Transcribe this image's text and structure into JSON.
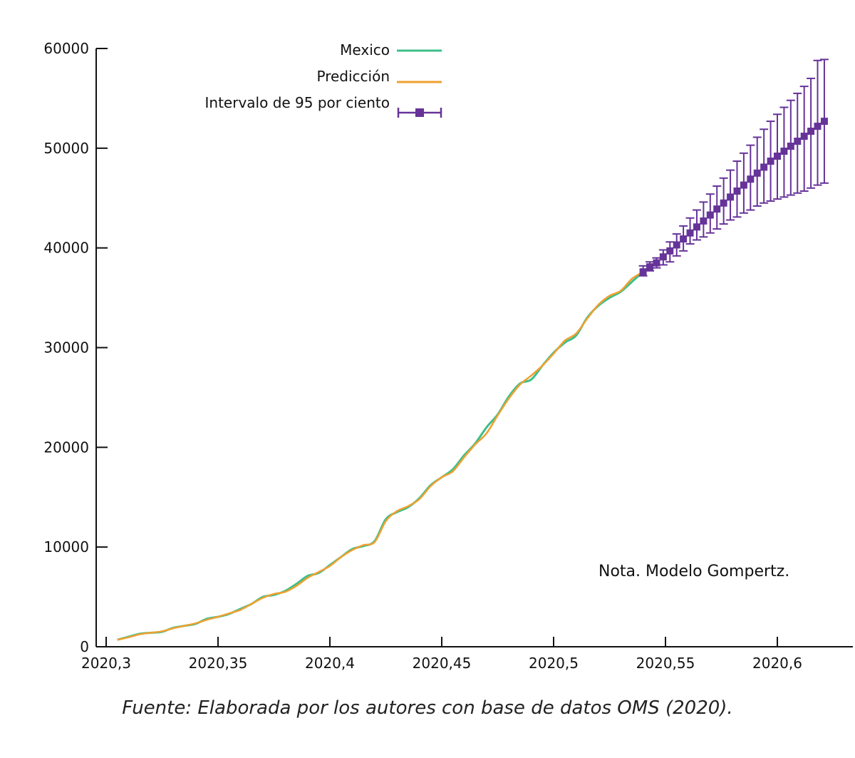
{
  "chart_data": {
    "type": "line",
    "title": "",
    "xlabel": "",
    "ylabel": "",
    "xlim": [
      2020.296,
      2020.64
    ],
    "ylim": [
      0,
      60000
    ],
    "x_ticks": [
      2020.3,
      2020.35,
      2020.4,
      2020.45,
      2020.5,
      2020.55,
      2020.6
    ],
    "x_tick_labels": [
      "2020,3",
      "2020,35",
      "2020,4",
      "2020,45",
      "2020,5",
      "2020,55",
      "2020,6"
    ],
    "y_ticks": [
      0,
      10000,
      20000,
      30000,
      40000,
      50000,
      60000
    ],
    "y_tick_labels": [
      "0",
      "10000",
      "20000",
      "30000",
      "40000",
      "50000",
      "60000"
    ],
    "legend_position": "top-left",
    "grid": false,
    "series": [
      {
        "name": "Mexico",
        "color": "#3dbf8a",
        "x": [
          2020.305,
          2020.31,
          2020.315,
          2020.32,
          2020.325,
          2020.33,
          2020.335,
          2020.34,
          2020.345,
          2020.35,
          2020.355,
          2020.36,
          2020.365,
          2020.37,
          2020.375,
          2020.38,
          2020.385,
          2020.39,
          2020.395,
          2020.4,
          2020.405,
          2020.41,
          2020.415,
          2020.42,
          2020.425,
          2020.43,
          2020.435,
          2020.44,
          2020.445,
          2020.45,
          2020.455,
          2020.46,
          2020.465,
          2020.47,
          2020.475,
          2020.48,
          2020.485,
          2020.49,
          2020.495,
          2020.5,
          2020.505,
          2020.51,
          2020.515,
          2020.52,
          2020.525,
          2020.53,
          2020.535,
          2020.54
        ],
        "values": [
          700,
          1000,
          1300,
          1400,
          1500,
          1900,
          2100,
          2300,
          2800,
          3000,
          3300,
          3800,
          4300,
          5000,
          5200,
          5600,
          6300,
          7100,
          7400,
          8200,
          9000,
          9800,
          10100,
          10600,
          12800,
          13500,
          14000,
          14900,
          16200,
          17000,
          17800,
          19200,
          20400,
          22000,
          23300,
          25100,
          26400,
          26800,
          28200,
          29500,
          30500,
          31200,
          33000,
          34200,
          35000,
          35600,
          36600,
          37600
        ]
      },
      {
        "name": "Predicción",
        "color": "#f0a030",
        "x": [
          2020.305,
          2020.31,
          2020.315,
          2020.32,
          2020.325,
          2020.33,
          2020.335,
          2020.34,
          2020.345,
          2020.35,
          2020.355,
          2020.36,
          2020.365,
          2020.37,
          2020.375,
          2020.38,
          2020.385,
          2020.39,
          2020.395,
          2020.4,
          2020.405,
          2020.41,
          2020.415,
          2020.42,
          2020.425,
          2020.43,
          2020.435,
          2020.44,
          2020.445,
          2020.45,
          2020.455,
          2020.46,
          2020.465,
          2020.47,
          2020.475,
          2020.48,
          2020.485,
          2020.49,
          2020.495,
          2020.5,
          2020.505,
          2020.51,
          2020.515,
          2020.52,
          2020.525,
          2020.53,
          2020.535,
          2020.54
        ],
        "values": [
          700,
          950,
          1250,
          1400,
          1550,
          1850,
          2100,
          2350,
          2700,
          3000,
          3350,
          3700,
          4300,
          4900,
          5300,
          5500,
          6100,
          6900,
          7500,
          8100,
          9000,
          9700,
          10200,
          10500,
          12600,
          13600,
          14100,
          14800,
          16100,
          17000,
          17600,
          19000,
          20300,
          21400,
          23200,
          24900,
          26300,
          27200,
          28200,
          29400,
          30700,
          31400,
          32900,
          34300,
          35200,
          35700,
          36900,
          37600
        ]
      },
      {
        "name": "Intervalo de 95 por ciento",
        "color": "#663399",
        "x": [
          2020.54,
          2020.543,
          2020.546,
          2020.549,
          2020.552,
          2020.555,
          2020.558,
          2020.561,
          2020.564,
          2020.567,
          2020.57,
          2020.573,
          2020.576,
          2020.579,
          2020.582,
          2020.585,
          2020.588,
          2020.591,
          2020.594,
          2020.597,
          2020.6,
          2020.603,
          2020.606,
          2020.609,
          2020.612,
          2020.615,
          2020.618,
          2020.621
        ],
        "values": [
          37600,
          38100,
          38500,
          39100,
          39700,
          40300,
          40900,
          41500,
          42100,
          42700,
          43300,
          43900,
          44500,
          45100,
          45700,
          46300,
          46900,
          47500,
          48100,
          48700,
          49200,
          49700,
          50200,
          50700,
          51200,
          51700,
          52200,
          52700
        ],
        "lower": [
          37200,
          37700,
          38000,
          38300,
          38600,
          39200,
          39700,
          40400,
          40800,
          41100,
          41500,
          41900,
          42400,
          42800,
          43100,
          43500,
          43800,
          44200,
          44500,
          44700,
          44900,
          45100,
          45300,
          45500,
          45700,
          46000,
          46300,
          46500
        ],
        "upper": [
          38200,
          38600,
          39000,
          39800,
          40600,
          41400,
          42200,
          43000,
          43800,
          44600,
          45400,
          46200,
          47000,
          47800,
          48700,
          49500,
          50300,
          51100,
          51900,
          52700,
          53400,
          54100,
          54800,
          55500,
          56200,
          57000,
          58800,
          58900
        ]
      }
    ],
    "annotation": {
      "bold": "Nota.",
      "text": "Modelo Gompertz."
    }
  },
  "source_note": "Fuente: Elaborada por los autores con base de datos OMS (2020)."
}
